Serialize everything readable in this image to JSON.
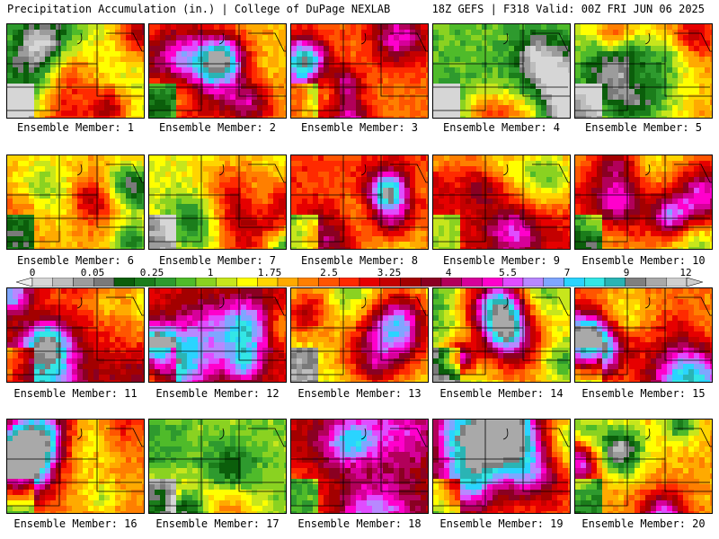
{
  "header": {
    "left_title": "Precipitation Accumulation (in.) | College of DuPage NEXLAB",
    "right_title": "18Z GEFS | F318 Valid: 00Z FRI JUN 06 2025"
  },
  "colorbar": {
    "tick_labels": [
      "0",
      "0.05",
      "0.25",
      "1",
      "1.75",
      "2.5",
      "3.25",
      "4",
      "5.5",
      "7",
      "9",
      "12"
    ],
    "colors": [
      "#d6d6d6",
      "#bdbdbd",
      "#9c9c9c",
      "#7a7a7a",
      "#0b5e0b",
      "#1b7d1b",
      "#2e9a2e",
      "#4fbb2a",
      "#8ad221",
      "#c7e61c",
      "#ffff00",
      "#ffd400",
      "#ffaa00",
      "#ff7f00",
      "#ff5500",
      "#ff2a00",
      "#e60000",
      "#c40000",
      "#a30000",
      "#8a0022",
      "#b2005a",
      "#d6009a",
      "#ff00cc",
      "#e04cff",
      "#b888ff",
      "#7fa6ff",
      "#2ad4ff",
      "#33e6e6",
      "#2ab4b4",
      "#7f7f7f",
      "#a9a9a9",
      "#cfcfcf"
    ]
  },
  "panels": [
    {
      "caption": "Ensemble Member: 1",
      "bias": -0.15,
      "seed": 11
    },
    {
      "caption": "Ensemble Member: 2",
      "bias": 0.05,
      "seed": 23
    },
    {
      "caption": "Ensemble Member: 3",
      "bias": 0.15,
      "seed": 37
    },
    {
      "caption": "Ensemble Member: 4",
      "bias": -0.3,
      "seed": 41
    },
    {
      "caption": "Ensemble Member: 5",
      "bias": 0.05,
      "seed": 53
    },
    {
      "caption": "Ensemble Member: 6",
      "bias": 0.05,
      "seed": 67
    },
    {
      "caption": "Ensemble Member: 7",
      "bias": -0.1,
      "seed": 71
    },
    {
      "caption": "Ensemble Member: 8",
      "bias": 0.25,
      "seed": 83
    },
    {
      "caption": "Ensemble Member: 9",
      "bias": 0.35,
      "seed": 97
    },
    {
      "caption": "Ensemble Member: 10",
      "bias": 0.1,
      "seed": 101
    },
    {
      "caption": "Ensemble Member: 11",
      "bias": 0.3,
      "seed": 113
    },
    {
      "caption": "Ensemble Member: 12",
      "bias": 0.35,
      "seed": 127
    },
    {
      "caption": "Ensemble Member: 13",
      "bias": -0.15,
      "seed": 131
    },
    {
      "caption": "Ensemble Member: 14",
      "bias": -0.1,
      "seed": 149
    },
    {
      "caption": "Ensemble Member: 15",
      "bias": 0.15,
      "seed": 151
    },
    {
      "caption": "Ensemble Member: 16",
      "bias": 0.1,
      "seed": 163
    },
    {
      "caption": "Ensemble Member: 17",
      "bias": -0.25,
      "seed": 173
    },
    {
      "caption": "Ensemble Member: 18",
      "bias": 0.4,
      "seed": 181
    },
    {
      "caption": "Ensemble Member: 19",
      "bias": 0.2,
      "seed": 191
    },
    {
      "caption": "Ensemble Member: 20",
      "bias": 0.05,
      "seed": 199
    }
  ]
}
